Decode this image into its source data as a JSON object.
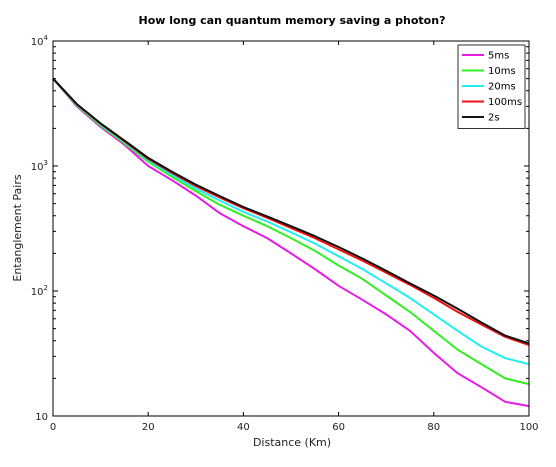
{
  "chart_data": {
    "type": "line",
    "title": "How long can quantum memory saving a photon?",
    "xlabel": "Distance (Km)",
    "ylabel": "Entanglement Pairs",
    "xlim": [
      0,
      100
    ],
    "ylim": [
      10,
      10000
    ],
    "yscale": "log",
    "xticks": [
      0,
      20,
      40,
      60,
      80,
      100
    ],
    "yticks": [
      {
        "value": 10,
        "base": "10",
        "exp": ""
      },
      {
        "value": 100,
        "base": "10",
        "exp": "2"
      },
      {
        "value": 1000,
        "base": "10",
        "exp": "3"
      },
      {
        "value": 10000,
        "base": "10",
        "exp": "4"
      }
    ],
    "grid": false,
    "legend_position": "top-right",
    "x": [
      0,
      5,
      10,
      15,
      20,
      25,
      30,
      35,
      40,
      45,
      50,
      55,
      60,
      65,
      70,
      75,
      80,
      85,
      90,
      95,
      100
    ],
    "series": [
      {
        "name": "5ms",
        "color": "#e61be6",
        "values": [
          5000,
          3000,
          2050,
          1480,
          1000,
          770,
          580,
          420,
          330,
          265,
          200,
          150,
          110,
          85,
          65,
          48,
          32,
          22,
          17,
          13,
          12
        ]
      },
      {
        "name": "10ms",
        "color": "#33ee22",
        "values": [
          5000,
          3050,
          2100,
          1520,
          1080,
          820,
          630,
          490,
          400,
          330,
          265,
          210,
          160,
          125,
          92,
          68,
          48,
          34,
          26,
          20,
          18
        ]
      },
      {
        "name": "20ms",
        "color": "#22eeee",
        "values": [
          5000,
          3100,
          2150,
          1560,
          1110,
          850,
          660,
          530,
          430,
          360,
          295,
          240,
          190,
          150,
          115,
          88,
          65,
          48,
          36,
          29,
          26
        ]
      },
      {
        "name": "100ms",
        "color": "#ee1111",
        "values": [
          5000,
          3120,
          2180,
          1580,
          1140,
          880,
          690,
          560,
          460,
          385,
          320,
          265,
          215,
          175,
          140,
          112,
          88,
          68,
          54,
          43,
          37
        ]
      },
      {
        "name": "2s",
        "color": "#111111",
        "values": [
          5000,
          3130,
          2190,
          1600,
          1160,
          900,
          710,
          575,
          470,
          395,
          330,
          275,
          225,
          182,
          145,
          115,
          92,
          72,
          56,
          44,
          38
        ]
      }
    ]
  }
}
